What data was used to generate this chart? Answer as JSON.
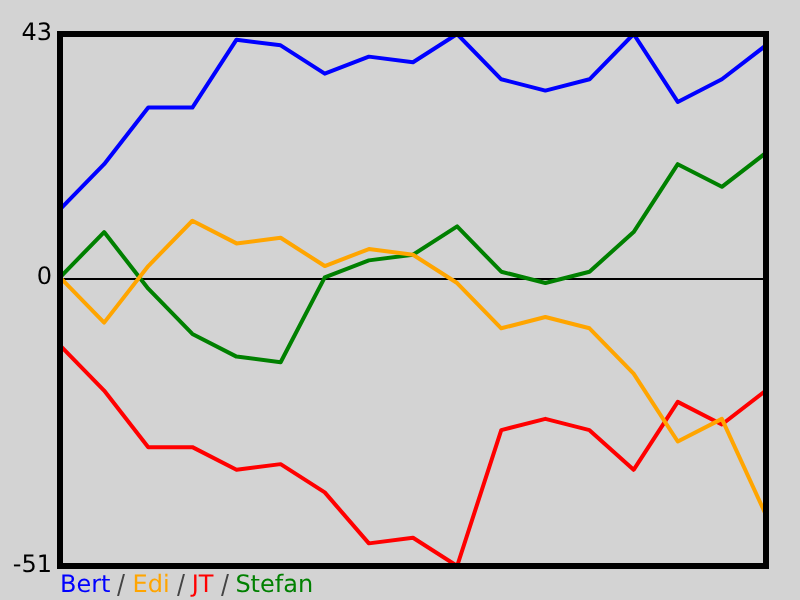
{
  "chart_data": {
    "type": "line",
    "categories": [
      null,
      null,
      null,
      null,
      null,
      null,
      null,
      null,
      null,
      null,
      null,
      null,
      null,
      null,
      null,
      null,
      null
    ],
    "series": [
      {
        "name": "Bert",
        "color": "#0000ff",
        "values": [
          12,
          20,
          30,
          30,
          42,
          41,
          36,
          39,
          38,
          43,
          35,
          33,
          35,
          43,
          31,
          35,
          41
        ]
      },
      {
        "name": "Edi",
        "color": "#ffa500",
        "values": [
          0,
          -8,
          2,
          10,
          6,
          7,
          2,
          5,
          4,
          -1,
          -9,
          -7,
          -9,
          -17,
          -29,
          -25,
          -42
        ]
      },
      {
        "name": "JT",
        "color": "#ff0000",
        "values": [
          -12,
          -20,
          -30,
          -30,
          -34,
          -33,
          -38,
          -47,
          -46,
          -51,
          -27,
          -25,
          -27,
          -34,
          -22,
          -26,
          -20
        ]
      },
      {
        "name": "Stefan",
        "color": "#008000",
        "values": [
          0,
          8,
          -2,
          -10,
          -14,
          -15,
          0,
          3,
          4,
          9,
          1,
          -1,
          1,
          8,
          20,
          16,
          22
        ]
      }
    ],
    "ylim": [
      -51,
      43
    ],
    "yticks": [
      -51,
      0,
      43
    ],
    "grid": "y",
    "legend": "bottom left",
    "marker": "none",
    "line_style": "solid"
  }
}
